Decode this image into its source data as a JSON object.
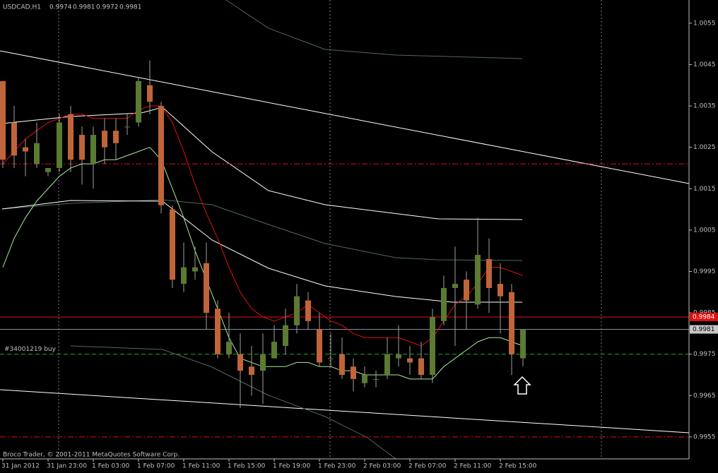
{
  "chart_data": {
    "type": "candlestick",
    "title": "USDCAD,H1",
    "categories": [
      "31 Jan 2012",
      null,
      null,
      null,
      "31 Jan 23:00",
      null,
      null,
      null,
      "1 Feb 03:00",
      null,
      null,
      null,
      "1 Feb 07:00",
      null,
      null,
      null,
      "1 Feb 11:00",
      null,
      null,
      null,
      "1 Feb 15:00",
      null,
      null,
      null,
      "1 Feb 19:00",
      null,
      null,
      null,
      "1 Feb 23:00",
      null,
      null,
      null,
      "2 Feb 03:00",
      null,
      null,
      null,
      "2 Feb 07:00",
      null,
      null,
      null,
      "2 Feb 11:00",
      null,
      null,
      null,
      "2 Feb 15:00",
      null,
      null
    ],
    "open": [
      1.0041,
      1.0031,
      1.0025,
      1.0021,
      1.0019,
      1.002,
      1.0033,
      1.0028,
      1.0021,
      1.0029,
      1.0029,
      1.003,
      1.0031,
      1.004,
      1.0035,
      1.001,
      0.9992,
      0.9995,
      0.9997,
      0.9986,
      0.9975,
      0.9975,
      0.9972,
      0.9971,
      0.9974,
      0.9977,
      0.9982,
      0.9988,
      0.9981,
      0.9974,
      0.9975,
      0.9972,
      0.9968,
      0.9969,
      0.997,
      0.9974,
      0.9974,
      0.9974,
      0.997,
      0.9983,
      0.9991,
      0.9993,
      0.9987,
      0.9998,
      0.9992,
      0.999,
      0.9974
    ],
    "high": [
      1.0041,
      1.0035,
      1.0027,
      1.0031,
      1.002,
      1.0033,
      1.0035,
      1.003,
      1.003,
      1.0032,
      1.0032,
      1.0033,
      1.0042,
      1.0046,
      1.0036,
      1.0011,
      1.0002,
      1.0001,
      1.0002,
      0.9988,
      0.9985,
      0.998,
      0.9977,
      0.998,
      0.9982,
      0.9986,
      0.9992,
      0.999,
      0.9985,
      0.998,
      0.9979,
      0.9974,
      0.9972,
      0.9971,
      0.9979,
      0.9982,
      0.9977,
      0.9978,
      0.9986,
      0.9994,
      1.0001,
      0.9995,
      1.0008,
      1.0003,
      0.9997,
      0.9992,
      0.9981
    ],
    "low": [
      1.002,
      1.002,
      1.0018,
      1.002,
      1.0018,
      1.0019,
      1.0019,
      1.0016,
      1.0015,
      1.0021,
      1.0022,
      1.0028,
      1.003,
      1.0033,
      1.0009,
      0.9991,
      0.999,
      0.9993,
      0.9981,
      0.9974,
      0.9974,
      0.9962,
      0.9965,
      0.9963,
      0.9974,
      0.9975,
      0.998,
      0.9981,
      0.9972,
      0.9972,
      0.9969,
      0.9966,
      0.9967,
      0.9967,
      0.9969,
      0.9972,
      0.997,
      0.9969,
      0.9968,
      0.9982,
      0.9977,
      0.9981,
      0.9986,
      0.9985,
      0.998,
      0.997,
      0.9972
    ],
    "close": [
      1.0022,
      1.0023,
      1.0024,
      1.0026,
      1.002,
      1.0031,
      1.0022,
      1.0022,
      1.0028,
      1.0025,
      1.0026,
      1.003,
      1.0041,
      1.0036,
      1.0011,
      0.9993,
      0.9996,
      0.9996,
      0.9985,
      0.9975,
      0.9978,
      0.9971,
      0.997,
      0.9975,
      0.9978,
      0.9982,
      0.9989,
      0.9983,
      0.9973,
      0.9974,
      0.997,
      0.9969,
      0.997,
      0.9969,
      0.9975,
      0.9975,
      0.9973,
      0.997,
      0.9984,
      0.9991,
      0.9992,
      0.9988,
      0.9999,
      0.9991,
      0.9989,
      0.9975,
      0.9981
    ],
    "up_color": "#5b7a32",
    "down_color": "#c0643a",
    "indicators": [
      {
        "color": "#e01010",
        "values": [
          1.0021,
          1.0024,
          1.0027,
          1.0029,
          1.0031,
          1.0032,
          1.0033,
          1.0033,
          1.0032,
          1.0032,
          1.0032,
          1.0032,
          1.0034,
          1.0035,
          1.0035,
          1.0031,
          1.0024,
          1.0016,
          1.0009,
          1.0003,
          0.9996,
          0.999,
          0.9986,
          0.9984,
          0.9983,
          0.9984,
          0.9985,
          0.9987,
          0.9985,
          0.9983,
          0.9982,
          0.998,
          0.9979,
          0.9979,
          0.9979,
          0.9979,
          0.9978,
          0.9977,
          0.9979,
          0.9983,
          0.9987,
          0.9989,
          0.9992,
          0.9996,
          0.9996,
          0.9995,
          0.9994
        ]
      },
      {
        "color": "#a8e8a0",
        "values": [
          0.9996,
          1.0003,
          1.0008,
          1.0012,
          1.0015,
          1.0018,
          1.002,
          1.0021,
          1.0021,
          1.0022,
          1.0022,
          1.0023,
          1.0024,
          1.0025,
          1.0022,
          1.0015,
          1.0008,
          1.0,
          0.9993,
          0.9986,
          0.9979,
          0.9974,
          0.9973,
          0.9972,
          0.9972,
          0.9972,
          0.9973,
          0.9973,
          0.9972,
          0.9972,
          0.9971,
          0.9971,
          0.997,
          0.997,
          0.997,
          0.997,
          0.9969,
          0.9969,
          0.9969,
          0.9972,
          0.9974,
          0.9976,
          0.9978,
          0.9979,
          0.9979,
          0.9978,
          0.9977
        ]
      }
    ],
    "bid_line": {
      "value": 0.9984,
      "color": "#e01010"
    },
    "ask_line": {
      "value": 0.9981,
      "color": "#8090a0"
    },
    "levels": [
      1.0021,
      0.9955
    ],
    "order": {
      "label": "#34001219 buy",
      "value": 0.9975
    },
    "footer": "Broco Trader, © 2001-2011 MetaQuotes Software Corp.",
    "ylim": [
      0.99497,
      1.00606
    ],
    "yticks": [
      1.0055,
      1.0045,
      1.0035,
      1.0025,
      1.0015,
      1.0005,
      0.9995,
      0.9985,
      0.9975,
      0.9965,
      0.9955
    ]
  }
}
